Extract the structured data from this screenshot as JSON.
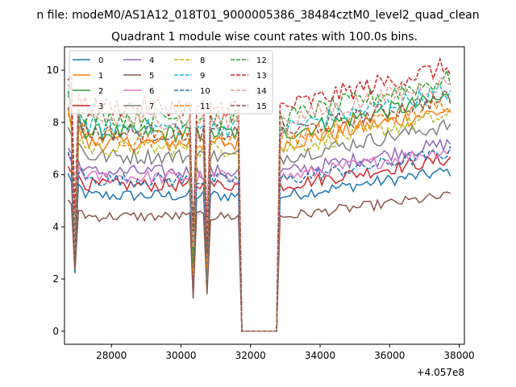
{
  "chart_data": {
    "type": "line",
    "suptitle": "n file: modeM0/AS1A12_018T01_9000005386_38484cztM0_level2_quad_clean",
    "title": "Quadrant 1 module wise count rates with 100.0s bins.",
    "xlabel": "",
    "ylabel": "",
    "x_offset_label": "+4.057e8",
    "xlim": [
      26650,
      38150
    ],
    "ylim": [
      -0.5,
      10.9
    ],
    "x_ticks": [
      28000,
      30000,
      32000,
      34000,
      36000,
      38000
    ],
    "x_tick_labels": [
      "28000",
      "30000",
      "32000",
      "34000",
      "36000",
      "38000"
    ],
    "y_ticks": [
      0,
      2,
      4,
      6,
      8,
      10
    ],
    "y_tick_labels": [
      "0",
      "2",
      "4",
      "6",
      "8",
      "10"
    ],
    "grid": false,
    "legend_position": "top-left",
    "legend_columns": 4,
    "time_range": [
      26750,
      37750
    ],
    "bin_seconds": 100,
    "gap_intervals": [
      [
        31700,
        32800
      ]
    ],
    "dip_times": [
      26950,
      30350,
      30750,
      31500
    ],
    "series": [
      {
        "name": "0",
        "color": "#1f77b4",
        "dash": "solid",
        "level": 5.2
      },
      {
        "name": "1",
        "color": "#ff7f0e",
        "dash": "solid",
        "level": 7.2
      },
      {
        "name": "2",
        "color": "#2ca02c",
        "dash": "solid",
        "level": 7.6
      },
      {
        "name": "3",
        "color": "#d62728",
        "dash": "solid",
        "level": 5.6
      },
      {
        "name": "4",
        "color": "#9467bd",
        "dash": "solid",
        "level": 6.1
      },
      {
        "name": "5",
        "color": "#8c564b",
        "dash": "solid",
        "level": 4.4
      },
      {
        "name": "6",
        "color": "#e377c2",
        "dash": "solid",
        "level": 5.9
      },
      {
        "name": "7",
        "color": "#7f7f7f",
        "dash": "solid",
        "level": 6.7
      },
      {
        "name": "8",
        "color": "#bcbd22",
        "dash": "dashed",
        "level": 7.0
      },
      {
        "name": "9",
        "color": "#17becf",
        "dash": "dashed",
        "level": 7.8
      },
      {
        "name": "10",
        "color": "#1f77b4",
        "dash": "dashed",
        "level": 5.8
      },
      {
        "name": "11",
        "color": "#ff7f0e",
        "dash": "dashed",
        "level": 7.4
      },
      {
        "name": "12",
        "color": "#2ca02c",
        "dash": "dashed",
        "level": 8.2
      },
      {
        "name": "13",
        "color": "#d62728",
        "dash": "dashed",
        "level": 8.6
      },
      {
        "name": "14",
        "color": "#e8a09a",
        "dash": "dashed",
        "level": 8.1
      },
      {
        "name": "15",
        "color": "#8c564b",
        "dash": "dashed",
        "level": 7.6
      }
    ]
  }
}
